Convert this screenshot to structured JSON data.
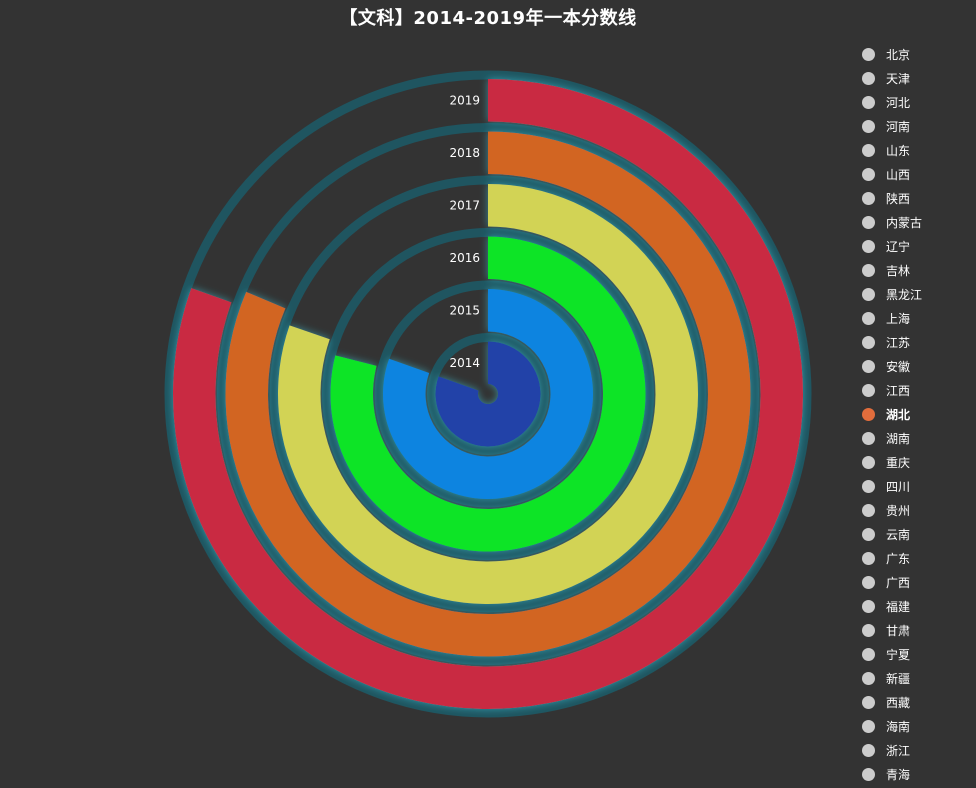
{
  "chart_data": {
    "type": "polar-bar",
    "title": "【文科】2014-2019年一本分数线",
    "categories": [
      "2014",
      "2015",
      "2016",
      "2017",
      "2018",
      "2019"
    ],
    "series": [
      {
        "name": "湖北",
        "values": [
          531,
          531,
          521,
          530,
          537,
          531
        ]
      }
    ],
    "angle_max": 660,
    "bar_colors": [
      "#2342a8",
      "#0b84e0",
      "#0be425",
      "#d2d355",
      "#d26524",
      "#c92b42"
    ],
    "ring_color": "#1f5560",
    "highlight_color": "#e26d3c",
    "legend_position": "right",
    "legend": [
      "北京",
      "天津",
      "河北",
      "河南",
      "山东",
      "山西",
      "陕西",
      "内蒙古",
      "辽宁",
      "吉林",
      "黑龙江",
      "上海",
      "江苏",
      "安徽",
      "江西",
      "湖北",
      "湖南",
      "重庆",
      "四川",
      "贵州",
      "云南",
      "广东",
      "广西",
      "福建",
      "甘肃",
      "宁夏",
      "新疆",
      "西藏",
      "海南",
      "浙江",
      "青海"
    ],
    "legend_selected": "湖北"
  }
}
